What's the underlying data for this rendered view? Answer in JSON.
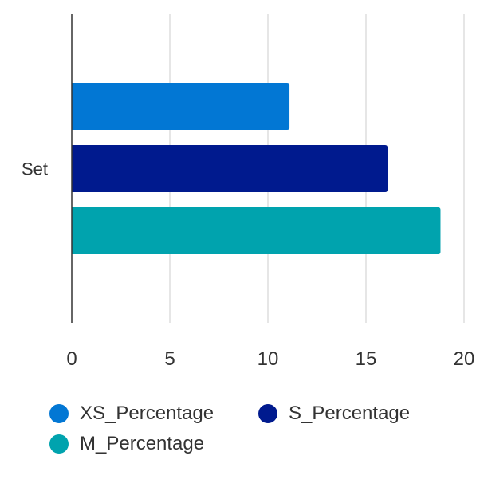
{
  "chart_data": {
    "type": "bar",
    "orientation": "horizontal",
    "categories": [
      "Set"
    ],
    "series": [
      {
        "name": "XS_Percentage",
        "values": [
          11.1
        ],
        "color": "#0277D4"
      },
      {
        "name": "S_Percentage",
        "values": [
          16.1
        ],
        "color": "#001A8E"
      },
      {
        "name": "M_Percentage",
        "values": [
          18.8
        ],
        "color": "#00A3AE"
      }
    ],
    "xlim": [
      0,
      20
    ],
    "xticks": [
      "0",
      "5",
      "10",
      "15",
      "20"
    ],
    "grid": true,
    "legend_position": "bottom"
  }
}
